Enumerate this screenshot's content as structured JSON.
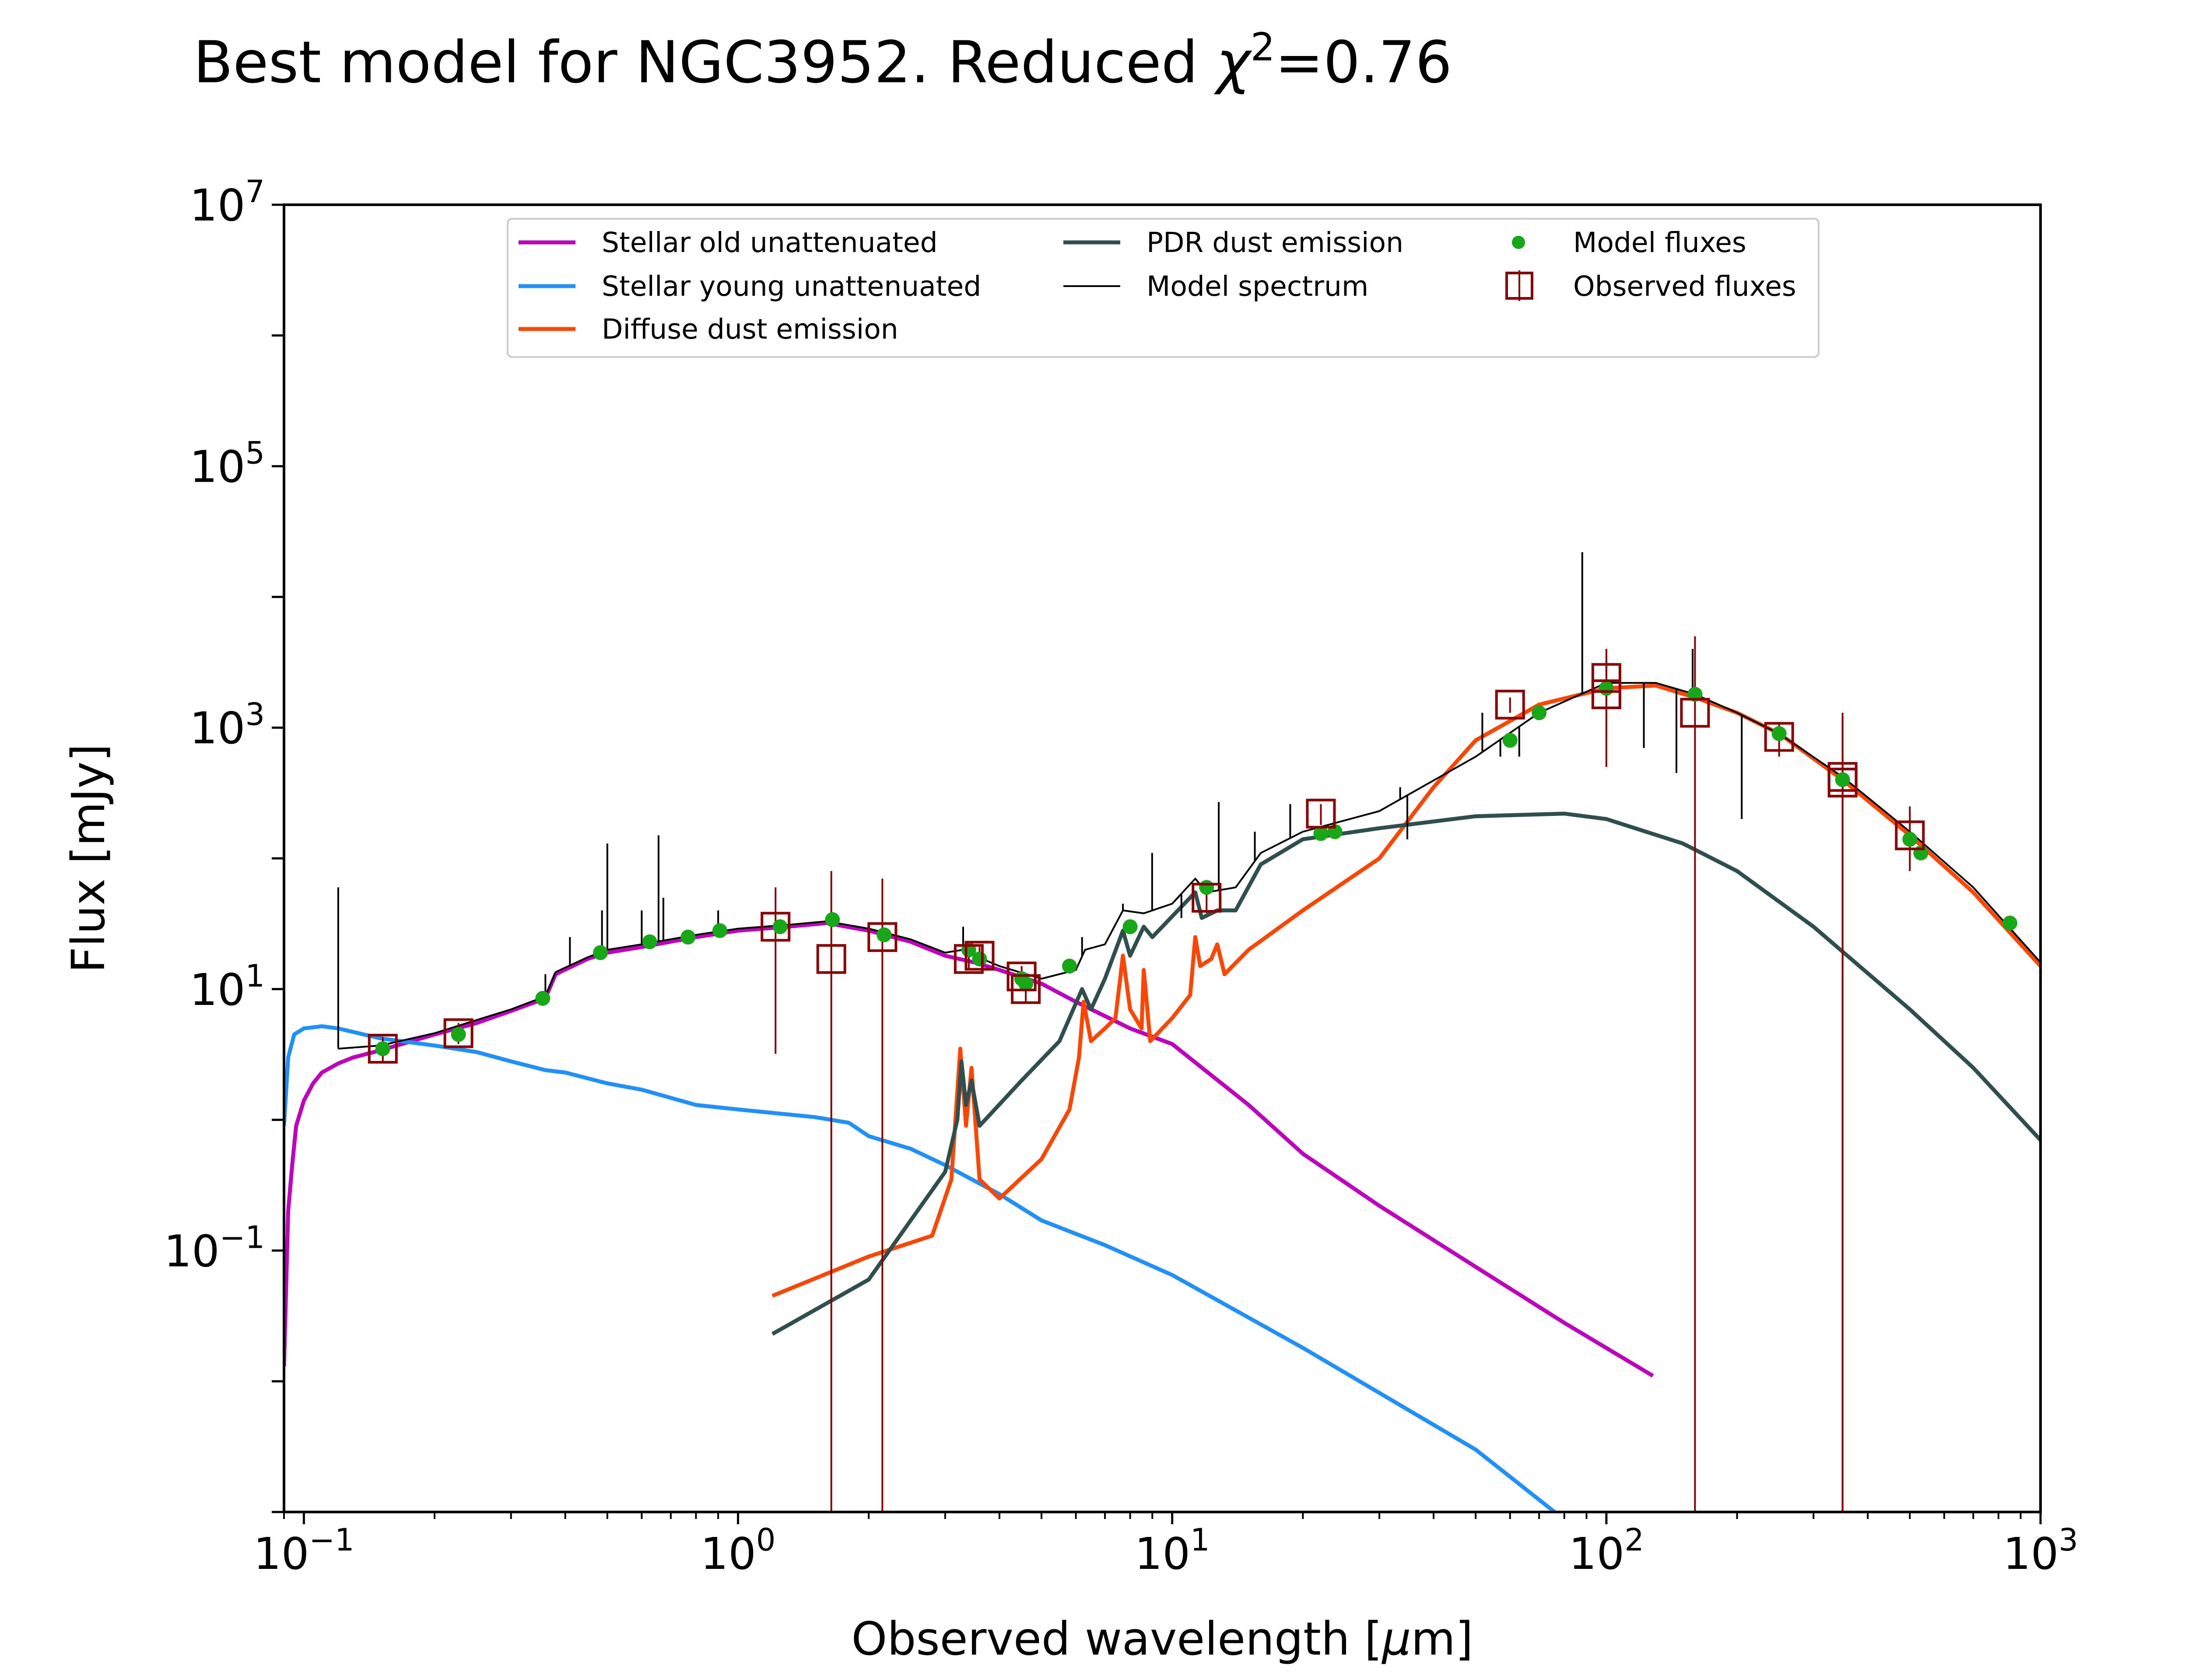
{
  "chart_data": {
    "type": "line",
    "title": "Best model for NGC3952. Reduced χ²=0.76",
    "title_parts": {
      "prefix": "Best model for NGC3952. Reduced ",
      "symbol": "χ",
      "sup": "2",
      "suffix": "=0.76"
    },
    "xlabel": "Observed wavelength [μm]",
    "xlabel_parts": {
      "prefix": "Observed wavelength [",
      "symbol": "μ",
      "suffix": "m]"
    },
    "ylabel": "Flux [mJy]",
    "xscale": "log",
    "yscale": "log",
    "xlim": [
      0.09,
      1000
    ],
    "ylim": [
      0.001,
      10000000
    ],
    "x_ticks": [
      {
        "base": "10",
        "exp": "−1",
        "value": 0.1
      },
      {
        "base": "10",
        "exp": "0",
        "value": 1
      },
      {
        "base": "10",
        "exp": "1",
        "value": 10
      },
      {
        "base": "10",
        "exp": "2",
        "value": 100
      },
      {
        "base": "10",
        "exp": "3",
        "value": 1000
      }
    ],
    "y_ticks": [
      {
        "base": "10",
        "exp": "−1",
        "value": 0.1
      },
      {
        "base": "10",
        "exp": "1",
        "value": 10
      },
      {
        "base": "10",
        "exp": "3",
        "value": 1000
      },
      {
        "base": "10",
        "exp": "5",
        "value": 100000
      },
      {
        "base": "10",
        "exp": "7",
        "value": 10000000
      }
    ],
    "grid": false,
    "legend_position": "top",
    "legend": [
      {
        "label": "Stellar old unattenuated",
        "kind": "line",
        "color": "#bf00bf"
      },
      {
        "label": "Stellar young unattenuated",
        "kind": "line",
        "color": "#1e90ff"
      },
      {
        "label": "Diffuse dust emission",
        "kind": "line",
        "color": "#ff4500"
      },
      {
        "label": "PDR dust emission",
        "kind": "line",
        "color": "#2f4f4f"
      },
      {
        "label": "Model spectrum",
        "kind": "thinline",
        "color": "#000000"
      },
      {
        "label": "Model fluxes",
        "kind": "dot",
        "color": "#17a817"
      },
      {
        "label": "Observed fluxes",
        "kind": "square",
        "color": "#8b0000"
      }
    ],
    "series": [
      {
        "name": "Stellar old unattenuated",
        "color": "#bf00bf",
        "points": [
          [
            0.09,
            0.013
          ],
          [
            0.092,
            0.2
          ],
          [
            0.094,
            0.45
          ],
          [
            0.096,
            0.9
          ],
          [
            0.1,
            1.4
          ],
          [
            0.105,
            1.9
          ],
          [
            0.11,
            2.3
          ],
          [
            0.12,
            2.7
          ],
          [
            0.13,
            3.0
          ],
          [
            0.15,
            3.4
          ],
          [
            0.2,
            4.5
          ],
          [
            0.25,
            5.5
          ],
          [
            0.3,
            6.8
          ],
          [
            0.36,
            8.5
          ],
          [
            0.38,
            13
          ],
          [
            0.45,
            17
          ],
          [
            0.5,
            19
          ],
          [
            0.6,
            21
          ],
          [
            0.8,
            25
          ],
          [
            1.0,
            28
          ],
          [
            1.3,
            30
          ],
          [
            1.6,
            32
          ],
          [
            2.0,
            28
          ],
          [
            2.5,
            23
          ],
          [
            3.0,
            18
          ],
          [
            3.5,
            16
          ],
          [
            4.0,
            14
          ],
          [
            5.0,
            11
          ],
          [
            6.0,
            8
          ],
          [
            8.0,
            5
          ],
          [
            10,
            3.8
          ],
          [
            15,
            1.3
          ],
          [
            20,
            0.55
          ],
          [
            30,
            0.22
          ],
          [
            50,
            0.075
          ],
          [
            80,
            0.028
          ],
          [
            128,
            0.011
          ]
        ]
      },
      {
        "name": "Stellar young unattenuated",
        "color": "#1e90ff",
        "points": [
          [
            0.09,
            0.9
          ],
          [
            0.092,
            3.0
          ],
          [
            0.095,
            4.5
          ],
          [
            0.1,
            5.0
          ],
          [
            0.11,
            5.2
          ],
          [
            0.12,
            5.0
          ],
          [
            0.15,
            4.2
          ],
          [
            0.2,
            3.7
          ],
          [
            0.25,
            3.3
          ],
          [
            0.3,
            2.8
          ],
          [
            0.36,
            2.4
          ],
          [
            0.4,
            2.3
          ],
          [
            0.5,
            1.9
          ],
          [
            0.6,
            1.7
          ],
          [
            0.8,
            1.3
          ],
          [
            1.0,
            1.2
          ],
          [
            1.5,
            1.05
          ],
          [
            1.8,
            0.95
          ],
          [
            2.0,
            0.75
          ],
          [
            2.5,
            0.6
          ],
          [
            3.0,
            0.45
          ],
          [
            4.0,
            0.27
          ],
          [
            5.0,
            0.17
          ],
          [
            7.0,
            0.11
          ],
          [
            10,
            0.065
          ],
          [
            20,
            0.018
          ],
          [
            50,
            0.003
          ],
          [
            76,
            0.001
          ]
        ]
      },
      {
        "name": "Diffuse dust emission",
        "color": "#ff4500",
        "points": [
          [
            1.2,
            0.045
          ],
          [
            2.0,
            0.09
          ],
          [
            2.8,
            0.13
          ],
          [
            3.1,
            0.35
          ],
          [
            3.25,
            3.5
          ],
          [
            3.35,
            0.9
          ],
          [
            3.45,
            2.5
          ],
          [
            3.6,
            0.35
          ],
          [
            4.0,
            0.25
          ],
          [
            5.0,
            0.5
          ],
          [
            5.8,
            1.2
          ],
          [
            6.1,
            3.0
          ],
          [
            6.25,
            8.0
          ],
          [
            6.5,
            4.0
          ],
          [
            7.0,
            5.0
          ],
          [
            7.4,
            6.0
          ],
          [
            7.7,
            18.0
          ],
          [
            8.0,
            7.0
          ],
          [
            8.5,
            5.0
          ],
          [
            8.6,
            14.0
          ],
          [
            8.9,
            4.0
          ],
          [
            10,
            6.0
          ],
          [
            11.0,
            9.0
          ],
          [
            11.3,
            25.0
          ],
          [
            11.6,
            15.0
          ],
          [
            12.3,
            17.0
          ],
          [
            12.7,
            22.0
          ],
          [
            13.2,
            13.0
          ],
          [
            15,
            20.0
          ],
          [
            20,
            40.0
          ],
          [
            30,
            100
          ],
          [
            40,
            350
          ],
          [
            50,
            800
          ],
          [
            70,
            1500
          ],
          [
            100,
            2000
          ],
          [
            130,
            2100
          ],
          [
            160,
            1700
          ],
          [
            200,
            1300
          ],
          [
            250,
            900
          ],
          [
            350,
            400
          ],
          [
            500,
            150
          ],
          [
            700,
            55
          ],
          [
            1000,
            15
          ]
        ]
      },
      {
        "name": "PDR dust emission",
        "color": "#2f4f4f",
        "points": [
          [
            1.2,
            0.023
          ],
          [
            2.0,
            0.06
          ],
          [
            3.0,
            0.4
          ],
          [
            3.2,
            1.0
          ],
          [
            3.27,
            2.8
          ],
          [
            3.35,
            1.3
          ],
          [
            3.45,
            2.0
          ],
          [
            3.6,
            0.9
          ],
          [
            4.5,
            2.0
          ],
          [
            5.5,
            4.0
          ],
          [
            6.2,
            10.0
          ],
          [
            6.5,
            7.0
          ],
          [
            7.0,
            12.0
          ],
          [
            7.7,
            28.0
          ],
          [
            8.0,
            18.0
          ],
          [
            8.6,
            30.0
          ],
          [
            9.0,
            25.0
          ],
          [
            11.3,
            55.0
          ],
          [
            11.7,
            35.0
          ],
          [
            12.7,
            40.0
          ],
          [
            14,
            40.0
          ],
          [
            16,
            90
          ],
          [
            20,
            140
          ],
          [
            30,
            170
          ],
          [
            50,
            210
          ],
          [
            80,
            220
          ],
          [
            100,
            200
          ],
          [
            150,
            130
          ],
          [
            200,
            80
          ],
          [
            300,
            30
          ],
          [
            500,
            7
          ],
          [
            700,
            2.5
          ],
          [
            1000,
            0.7
          ]
        ]
      },
      {
        "name": "Model spectrum",
        "color": "#000000",
        "points": [
          [
            0.12,
            3.5
          ],
          [
            0.15,
            3.7
          ],
          [
            0.2,
            4.6
          ],
          [
            0.25,
            5.8
          ],
          [
            0.3,
            7.0
          ],
          [
            0.36,
            8.8
          ],
          [
            0.38,
            13.5
          ],
          [
            0.45,
            17.5
          ],
          [
            0.5,
            20
          ],
          [
            0.6,
            22
          ],
          [
            0.8,
            26
          ],
          [
            1.0,
            29
          ],
          [
            1.3,
            31
          ],
          [
            1.6,
            33
          ],
          [
            2.0,
            29
          ],
          [
            2.5,
            24
          ],
          [
            3.0,
            19
          ],
          [
            3.3,
            20
          ],
          [
            3.5,
            18
          ],
          [
            4.0,
            15
          ],
          [
            5.0,
            12
          ],
          [
            6.0,
            14
          ],
          [
            6.3,
            20
          ],
          [
            7.0,
            22
          ],
          [
            7.7,
            40
          ],
          [
            8.6,
            38
          ],
          [
            10,
            45
          ],
          [
            11.3,
            70
          ],
          [
            12,
            55
          ],
          [
            14,
            60
          ],
          [
            16,
            110
          ],
          [
            20,
            160
          ],
          [
            30,
            230
          ],
          [
            50,
            600
          ],
          [
            70,
            1300
          ],
          [
            100,
            2200
          ],
          [
            130,
            2200
          ],
          [
            160,
            1800
          ],
          [
            200,
            1300
          ],
          [
            250,
            900
          ],
          [
            350,
            420
          ],
          [
            500,
            160
          ],
          [
            700,
            60
          ],
          [
            1000,
            16
          ]
        ]
      }
    ],
    "model_spectrum_lines": [
      [
        0.12,
        60
      ],
      [
        0.36,
        13
      ],
      [
        0.41,
        25
      ],
      [
        0.486,
        40
      ],
      [
        0.5,
        130
      ],
      [
        0.6,
        40
      ],
      [
        0.656,
        150
      ],
      [
        0.673,
        50
      ],
      [
        0.9,
        40
      ],
      [
        3.3,
        30
      ],
      [
        6.2,
        25
      ],
      [
        7.7,
        45
      ],
      [
        8.99,
        110
      ],
      [
        10.5,
        35
      ],
      [
        12.8,
        270
      ],
      [
        15.5,
        160
      ],
      [
        17,
        120
      ],
      [
        18.7,
        260
      ],
      [
        33.5,
        350
      ],
      [
        34.8,
        140
      ],
      [
        51.8,
        1300
      ],
      [
        57,
        600
      ],
      [
        63,
        600
      ],
      [
        88,
        22000
      ],
      [
        122,
        700
      ],
      [
        145,
        450
      ],
      [
        158,
        4000
      ],
      [
        205,
        200
      ]
    ],
    "model_fluxes": [
      [
        0.152,
        3.5
      ],
      [
        0.227,
        4.5
      ],
      [
        0.355,
        8.5
      ],
      [
        0.482,
        19
      ],
      [
        0.626,
        23
      ],
      [
        0.767,
        25
      ],
      [
        0.908,
        28
      ],
      [
        1.25,
        30
      ],
      [
        1.65,
        34
      ],
      [
        2.17,
        26
      ],
      [
        3.4,
        20
      ],
      [
        3.6,
        17
      ],
      [
        4.5,
        12
      ],
      [
        4.6,
        11
      ],
      [
        5.8,
        15
      ],
      [
        8.0,
        30
      ],
      [
        12,
        60
      ],
      [
        22,
        155
      ],
      [
        23.7,
        160
      ],
      [
        60,
        800
      ],
      [
        70,
        1300
      ],
      [
        100,
        2000
      ],
      [
        160,
        1800
      ],
      [
        250,
        900
      ],
      [
        350,
        400
      ],
      [
        500,
        140
      ],
      [
        530,
        110
      ],
      [
        850,
        32
      ]
    ],
    "observed_fluxes": [
      {
        "x": 0.152,
        "y": 3.5,
        "err_lo": 2.8,
        "err_hi": 4.3
      },
      {
        "x": 0.227,
        "y": 4.6,
        "err_lo": 3.8,
        "err_hi": 5.5
      },
      {
        "x": 1.22,
        "y": 30,
        "err_lo": 3.2,
        "err_hi": 60
      },
      {
        "x": 1.64,
        "y": 17,
        "err_lo": 0.001,
        "err_hi": 80
      },
      {
        "x": 2.15,
        "y": 25,
        "err_lo": 0.001,
        "err_hi": 70
      },
      {
        "x": 3.4,
        "y": 17,
        "err_lo": 14,
        "err_hi": 20
      },
      {
        "x": 3.6,
        "y": 18,
        "err_lo": 15,
        "err_hi": 21
      },
      {
        "x": 4.5,
        "y": 12.5,
        "err_lo": 10,
        "err_hi": 15
      },
      {
        "x": 4.6,
        "y": 10,
        "err_lo": 8,
        "err_hi": 12
      },
      {
        "x": 12,
        "y": 50,
        "err_lo": 38,
        "err_hi": 62
      },
      {
        "x": 22,
        "y": 220,
        "err_lo": 180,
        "err_hi": 260
      },
      {
        "x": 60,
        "y": 1500,
        "err_lo": 1300,
        "err_hi": 1700
      },
      {
        "x": 100,
        "y": 2400,
        "err_lo": 800,
        "err_hi": 4000
      },
      {
        "x": 100,
        "y": 1800,
        "err_lo": 500,
        "err_hi": 3500
      },
      {
        "x": 160,
        "y": 1300,
        "err_lo": 0.001,
        "err_hi": 5000
      },
      {
        "x": 250,
        "y": 850,
        "err_lo": 600,
        "err_hi": 1100
      },
      {
        "x": 350,
        "y": 420,
        "err_lo": 0.001,
        "err_hi": 1300
      },
      {
        "x": 350,
        "y": 380,
        "err_lo": 0.001,
        "err_hi": 1200
      },
      {
        "x": 500,
        "y": 150,
        "err_lo": 80,
        "err_hi": 250
      }
    ]
  }
}
